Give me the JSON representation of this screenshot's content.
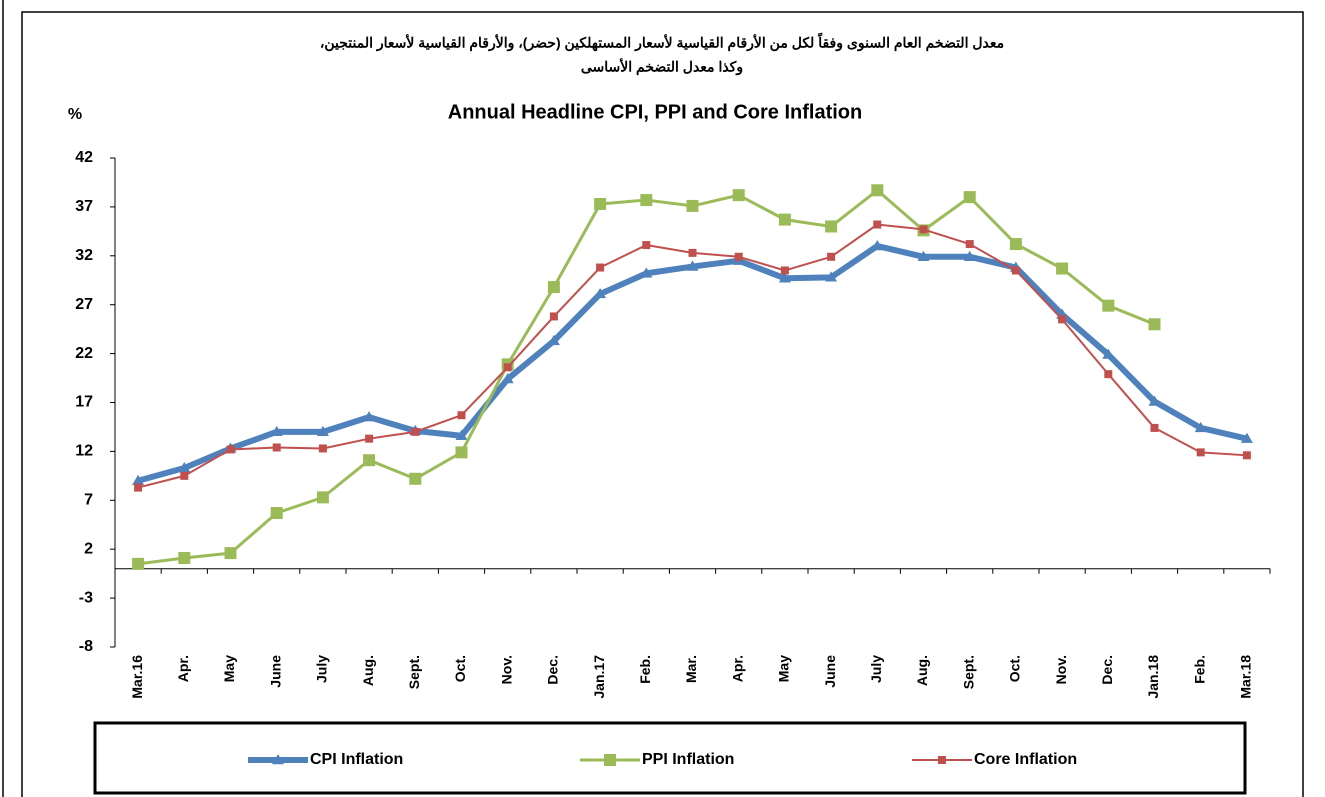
{
  "chart_data": {
    "type": "line",
    "title_ar": [
      "معدل التضخم العام السنوى وفقاً لكل من الأرقام القياسية لأسعار المستهلكين (حضر)، والأرقام القياسية لأسعار المنتجين،",
      "وكذا معدل التضخم الأساسى"
    ],
    "title": "Annual Headline CPI, PPI and Core Inflation",
    "y_label": "%",
    "categories": [
      "Mar.16",
      "Apr.",
      "May",
      "June",
      "July",
      "Aug.",
      "Sept.",
      "Oct.",
      "Nov.",
      "Dec.",
      "Jan.17",
      "Feb.",
      "Mar.",
      "Apr.",
      "May",
      "June",
      "July",
      "Aug.",
      "Sept.",
      "Oct.",
      "Nov.",
      "Dec.",
      "Jan.18",
      "Feb.",
      "Mar.18"
    ],
    "series": [
      {
        "name": "CPI Inflation",
        "color": "#4f81bd",
        "marker": "triangle",
        "values": [
          9.0,
          10.3,
          12.3,
          14.0,
          14.0,
          15.5,
          14.1,
          13.6,
          19.4,
          23.3,
          28.1,
          30.2,
          30.9,
          31.5,
          29.7,
          29.8,
          33.0,
          31.9,
          31.9,
          30.8,
          26.0,
          21.9,
          17.1,
          14.4,
          13.3
        ]
      },
      {
        "name": "PPI Inflation",
        "color": "#9bbb59",
        "marker": "square",
        "values": [
          0.5,
          1.1,
          1.6,
          5.7,
          7.3,
          11.1,
          9.2,
          11.9,
          20.9,
          28.8,
          37.3,
          37.7,
          37.1,
          38.2,
          35.7,
          35.0,
          38.7,
          34.6,
          38.0,
          33.2,
          30.7,
          26.9,
          25.0,
          null,
          null
        ]
      },
      {
        "name": "Core Inflation",
        "color": "#c0504d",
        "marker": "square",
        "values": [
          8.3,
          9.5,
          12.2,
          12.4,
          12.3,
          13.3,
          14.0,
          15.7,
          20.6,
          25.8,
          30.8,
          33.1,
          32.3,
          31.9,
          30.5,
          31.9,
          35.2,
          34.7,
          33.2,
          30.5,
          25.5,
          19.9,
          14.4,
          11.9,
          11.6
        ]
      }
    ],
    "ylim": [
      -8,
      42
    ],
    "yticks": [
      -8,
      -3,
      2,
      7,
      12,
      17,
      22,
      27,
      32,
      37,
      42
    ],
    "grid": false,
    "legend": "bottom"
  }
}
